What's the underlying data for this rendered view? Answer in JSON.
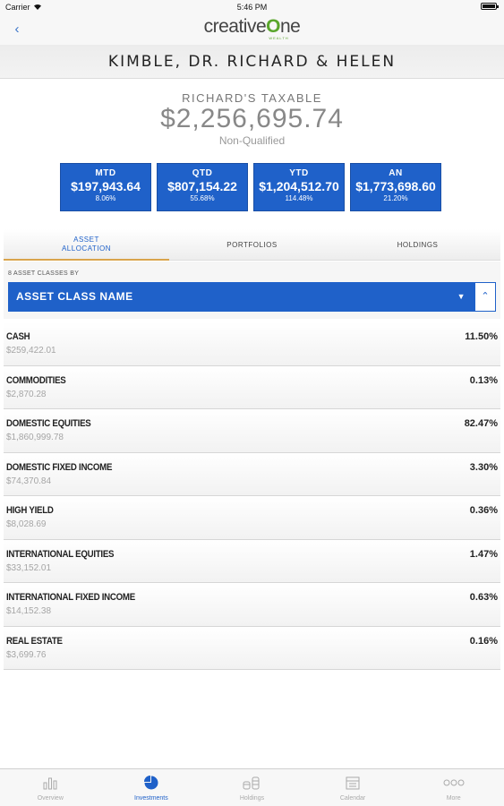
{
  "status_bar": {
    "carrier": "Carrier",
    "time": "5:46 PM"
  },
  "nav": {
    "logo_main": "creative",
    "logo_o": "O",
    "logo_end": "ne",
    "logo_sub": "WEALTH"
  },
  "client": {
    "name": "KIMBLE, DR. RICHARD & HELEN"
  },
  "account": {
    "title": "RICHARD'S TAXABLE",
    "value": "$2,256,695.74",
    "type": "Non-Qualified",
    "performance": [
      {
        "label": "MTD",
        "amount": "$197,943.64",
        "pct": "8.06%"
      },
      {
        "label": "QTD",
        "amount": "$807,154.22",
        "pct": "55.68%"
      },
      {
        "label": "YTD",
        "amount": "$1,204,512.70",
        "pct": "114.48%"
      },
      {
        "label": "AN",
        "amount": "$1,773,698.60",
        "pct": "21.20%"
      }
    ]
  },
  "tabs": [
    {
      "label": "ASSET ALLOCATION",
      "active": true
    },
    {
      "label": "PORTFOLIOS",
      "active": false
    },
    {
      "label": "HOLDINGS",
      "active": false
    }
  ],
  "sort": {
    "caption": "8 ASSET CLASSES BY",
    "selected": "ASSET CLASS NAME"
  },
  "assets": [
    {
      "name": "CASH",
      "amount": "$259,422.01",
      "pct": "11.50%"
    },
    {
      "name": "COMMODITIES",
      "amount": "$2,870.28",
      "pct": "0.13%"
    },
    {
      "name": "DOMESTIC EQUITIES",
      "amount": "$1,860,999.78",
      "pct": "82.47%"
    },
    {
      "name": "DOMESTIC FIXED INCOME",
      "amount": "$74,370.84",
      "pct": "3.30%"
    },
    {
      "name": "HIGH YIELD",
      "amount": "$8,028.69",
      "pct": "0.36%"
    },
    {
      "name": "INTERNATIONAL EQUITIES",
      "amount": "$33,152.01",
      "pct": "1.47%"
    },
    {
      "name": "INTERNATIONAL FIXED INCOME",
      "amount": "$14,152.38",
      "pct": "0.63%"
    },
    {
      "name": "REAL ESTATE",
      "amount": "$3,699.76",
      "pct": "0.16%"
    }
  ],
  "tab_bar": [
    {
      "label": "Overview",
      "icon": "bar-chart-icon",
      "active": false
    },
    {
      "label": "Investments",
      "icon": "pie-chart-icon",
      "active": true
    },
    {
      "label": "Holdings",
      "icon": "coins-icon",
      "active": false
    },
    {
      "label": "Calendar",
      "icon": "calendar-icon",
      "active": false
    },
    {
      "label": "More",
      "icon": "more-dots-icon",
      "active": false
    }
  ],
  "colors": {
    "accent": "#1f61c9",
    "tab_underline": "#d9a44c",
    "brand_green": "#5aa62c"
  }
}
